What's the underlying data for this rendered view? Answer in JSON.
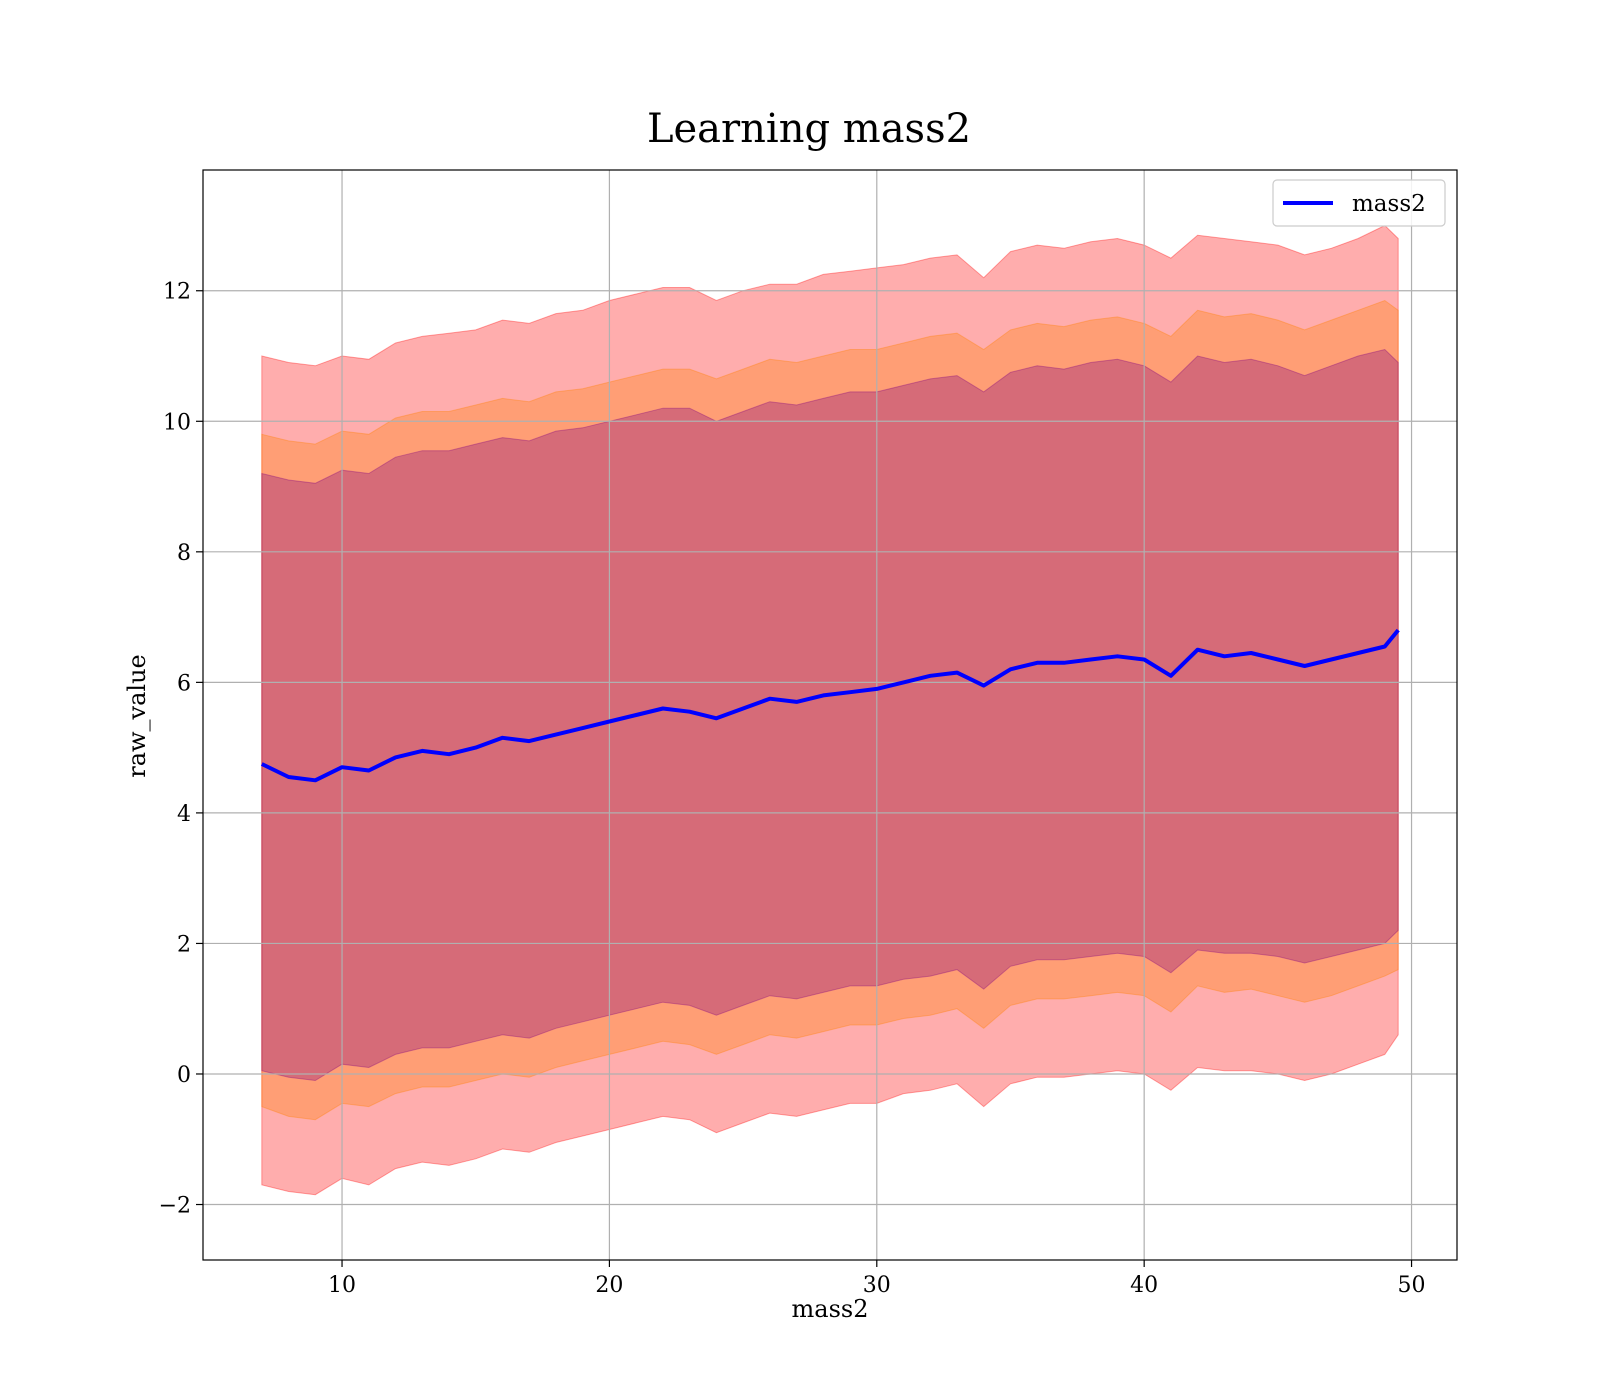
{
  "chart_data": {
    "type": "area",
    "title": "Learning mass2",
    "xlabel": "mass2",
    "ylabel": "raw_value",
    "xlim": [
      4.8,
      51.7
    ],
    "ylim": [
      -2.85,
      13.85
    ],
    "xticks": [
      10,
      20,
      30,
      40,
      50
    ],
    "yticks": [
      -2,
      0,
      2,
      4,
      6,
      8,
      10,
      12
    ],
    "xtick_labels": [
      "10",
      "20",
      "30",
      "40",
      "50"
    ],
    "ytick_labels": [
      "−2",
      "0",
      "2",
      "4",
      "6",
      "8",
      "10",
      "12"
    ],
    "grid": true,
    "legend": {
      "position": "top-right",
      "entries": [
        "mass2"
      ]
    },
    "x": [
      7.0,
      8.0,
      9.0,
      10.0,
      11.0,
      12.0,
      13.0,
      14.0,
      15.0,
      16.0,
      17.0,
      18.0,
      19.0,
      20.0,
      21.0,
      22.0,
      23.0,
      24.0,
      25.0,
      26.0,
      27.0,
      28.0,
      29.0,
      30.0,
      31.0,
      32.0,
      33.0,
      34.0,
      35.0,
      36.0,
      37.0,
      38.0,
      39.0,
      40.0,
      41.0,
      42.0,
      43.0,
      44.0,
      45.0,
      46.0,
      47.0,
      48.0,
      49.0,
      49.5
    ],
    "series": [
      {
        "name": "mass2",
        "color": "#0000ff",
        "values": [
          4.75,
          4.55,
          4.5,
          4.7,
          4.65,
          4.85,
          4.95,
          4.9,
          5.0,
          5.15,
          5.1,
          5.2,
          5.3,
          5.4,
          5.5,
          5.6,
          5.55,
          5.45,
          5.6,
          5.75,
          5.7,
          5.8,
          5.85,
          5.9,
          6.0,
          6.1,
          6.15,
          5.95,
          6.2,
          6.3,
          6.3,
          6.35,
          6.4,
          6.35,
          6.1,
          6.5,
          6.4,
          6.45,
          6.35,
          6.25,
          6.35,
          6.45,
          6.55,
          6.8
        ]
      }
    ],
    "bands": [
      {
        "color": "#ff0000",
        "opacity": 0.32,
        "upper": [
          11.0,
          10.9,
          10.85,
          11.0,
          10.95,
          11.2,
          11.3,
          11.35,
          11.4,
          11.55,
          11.5,
          11.65,
          11.7,
          11.85,
          11.95,
          12.05,
          12.05,
          11.85,
          12.0,
          12.1,
          12.1,
          12.25,
          12.3,
          12.35,
          12.4,
          12.5,
          12.55,
          12.2,
          12.6,
          12.7,
          12.65,
          12.75,
          12.8,
          12.7,
          12.5,
          12.85,
          12.8,
          12.75,
          12.7,
          12.55,
          12.65,
          12.8,
          13.0,
          12.8
        ],
        "lower": [
          -1.7,
          -1.8,
          -1.85,
          -1.6,
          -1.7,
          -1.45,
          -1.35,
          -1.4,
          -1.3,
          -1.15,
          -1.2,
          -1.05,
          -0.95,
          -0.85,
          -0.75,
          -0.65,
          -0.7,
          -0.9,
          -0.75,
          -0.6,
          -0.65,
          -0.55,
          -0.45,
          -0.45,
          -0.3,
          -0.25,
          -0.15,
          -0.5,
          -0.15,
          -0.05,
          -0.05,
          0.0,
          0.05,
          0.0,
          -0.25,
          0.1,
          0.05,
          0.05,
          0.0,
          -0.1,
          0.0,
          0.15,
          0.3,
          0.6
        ]
      },
      {
        "color": "#ff8000",
        "opacity": 0.32,
        "upper": [
          9.8,
          9.7,
          9.65,
          9.85,
          9.8,
          10.05,
          10.15,
          10.15,
          10.25,
          10.35,
          10.3,
          10.45,
          10.5,
          10.6,
          10.7,
          10.8,
          10.8,
          10.65,
          10.8,
          10.95,
          10.9,
          11.0,
          11.1,
          11.1,
          11.2,
          11.3,
          11.35,
          11.1,
          11.4,
          11.5,
          11.45,
          11.55,
          11.6,
          11.5,
          11.3,
          11.7,
          11.6,
          11.65,
          11.55,
          11.4,
          11.55,
          11.7,
          11.85,
          11.7
        ],
        "lower": [
          -0.5,
          -0.65,
          -0.7,
          -0.45,
          -0.5,
          -0.3,
          -0.2,
          -0.2,
          -0.1,
          0.0,
          -0.05,
          0.1,
          0.2,
          0.3,
          0.4,
          0.5,
          0.45,
          0.3,
          0.45,
          0.6,
          0.55,
          0.65,
          0.75,
          0.75,
          0.85,
          0.9,
          1.0,
          0.7,
          1.05,
          1.15,
          1.15,
          1.2,
          1.25,
          1.2,
          0.95,
          1.35,
          1.25,
          1.3,
          1.2,
          1.1,
          1.2,
          1.35,
          1.5,
          1.6
        ]
      },
      {
        "color": "#800080",
        "opacity": 0.32,
        "upper": [
          9.2,
          9.1,
          9.05,
          9.25,
          9.2,
          9.45,
          9.55,
          9.55,
          9.65,
          9.75,
          9.7,
          9.85,
          9.9,
          10.0,
          10.1,
          10.2,
          10.2,
          10.0,
          10.15,
          10.3,
          10.25,
          10.35,
          10.45,
          10.45,
          10.55,
          10.65,
          10.7,
          10.45,
          10.75,
          10.85,
          10.8,
          10.9,
          10.95,
          10.85,
          10.6,
          11.0,
          10.9,
          10.95,
          10.85,
          10.7,
          10.85,
          11.0,
          11.1,
          10.9
        ],
        "lower": [
          0.05,
          -0.05,
          -0.1,
          0.15,
          0.1,
          0.3,
          0.4,
          0.4,
          0.5,
          0.6,
          0.55,
          0.7,
          0.8,
          0.9,
          1.0,
          1.1,
          1.05,
          0.9,
          1.05,
          1.2,
          1.15,
          1.25,
          1.35,
          1.35,
          1.45,
          1.5,
          1.6,
          1.3,
          1.65,
          1.75,
          1.75,
          1.8,
          1.85,
          1.8,
          1.55,
          1.9,
          1.85,
          1.85,
          1.8,
          1.7,
          1.8,
          1.9,
          2.0,
          2.2
        ]
      }
    ]
  }
}
